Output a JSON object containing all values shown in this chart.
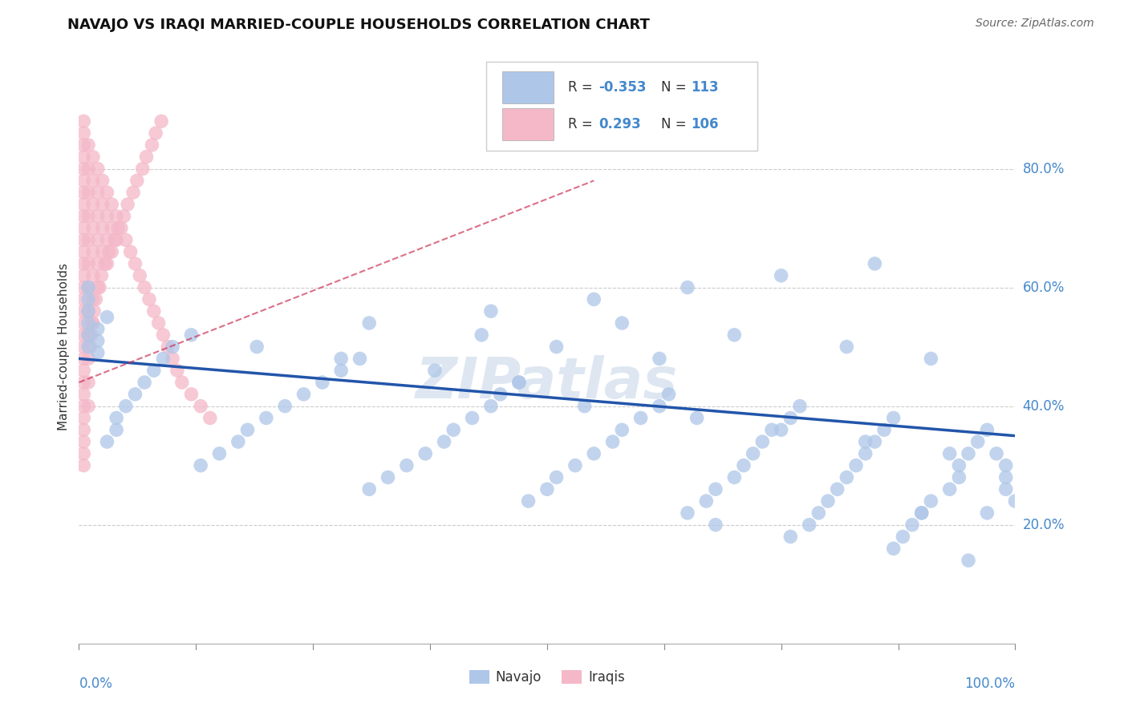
{
  "title": "NAVAJO VS IRAQI MARRIED-COUPLE HOUSEHOLDS CORRELATION CHART",
  "source": "Source: ZipAtlas.com",
  "ylabel": "Married-couple Households",
  "legend_navajo": {
    "R": -0.353,
    "N": 113,
    "color": "#aec6e8"
  },
  "legend_iraqi": {
    "R": 0.293,
    "N": 106,
    "color": "#f4b8c8"
  },
  "navajo_line_color": "#2255aa",
  "iraqi_line_color": "#cc3355",
  "background_color": "#ffffff",
  "grid_color": "#cccccc",
  "axis_label_color": "#4488cc",
  "title_color": "#111111",
  "ylabel_color": "#333333",
  "source_color": "#666666",
  "watermark_color": "#c8d8e8",
  "navajo_x": [
    0.97,
    0.96,
    0.95,
    0.94,
    0.94,
    0.93,
    0.91,
    0.9,
    0.89,
    0.88,
    0.87,
    0.86,
    0.85,
    0.84,
    0.83,
    0.82,
    0.81,
    0.8,
    0.79,
    0.78,
    0.77,
    0.76,
    0.75,
    0.73,
    0.72,
    0.71,
    0.7,
    0.68,
    0.67,
    0.65,
    0.63,
    0.62,
    0.6,
    0.58,
    0.57,
    0.55,
    0.53,
    0.51,
    0.5,
    0.48,
    0.47,
    0.45,
    0.44,
    0.42,
    0.4,
    0.39,
    0.37,
    0.35,
    0.33,
    0.31,
    0.3,
    0.28,
    0.26,
    0.24,
    0.22,
    0.2,
    0.18,
    0.17,
    0.15,
    0.13,
    0.12,
    0.1,
    0.09,
    0.08,
    0.07,
    0.06,
    0.05,
    0.04,
    0.04,
    0.03,
    0.03,
    0.02,
    0.02,
    0.02,
    0.01,
    0.01,
    0.01,
    0.01,
    0.01,
    0.01,
    0.98,
    0.99,
    0.99,
    0.99,
    1.0,
    0.62,
    0.51,
    0.43,
    0.31,
    0.44,
    0.55,
    0.65,
    0.75,
    0.85,
    0.9,
    0.47,
    0.38,
    0.28,
    0.19,
    0.54,
    0.66,
    0.74,
    0.84,
    0.93,
    0.58,
    0.7,
    0.82,
    0.91,
    0.97,
    0.68,
    0.76,
    0.87,
    0.95
  ],
  "navajo_y": [
    0.36,
    0.34,
    0.32,
    0.3,
    0.28,
    0.26,
    0.24,
    0.22,
    0.2,
    0.18,
    0.38,
    0.36,
    0.34,
    0.32,
    0.3,
    0.28,
    0.26,
    0.24,
    0.22,
    0.2,
    0.4,
    0.38,
    0.36,
    0.34,
    0.32,
    0.3,
    0.28,
    0.26,
    0.24,
    0.22,
    0.42,
    0.4,
    0.38,
    0.36,
    0.34,
    0.32,
    0.3,
    0.28,
    0.26,
    0.24,
    0.44,
    0.42,
    0.4,
    0.38,
    0.36,
    0.34,
    0.32,
    0.3,
    0.28,
    0.26,
    0.48,
    0.46,
    0.44,
    0.42,
    0.4,
    0.38,
    0.36,
    0.34,
    0.32,
    0.3,
    0.52,
    0.5,
    0.48,
    0.46,
    0.44,
    0.42,
    0.4,
    0.38,
    0.36,
    0.34,
    0.55,
    0.53,
    0.51,
    0.49,
    0.6,
    0.58,
    0.56,
    0.54,
    0.52,
    0.5,
    0.32,
    0.3,
    0.28,
    0.26,
    0.24,
    0.48,
    0.5,
    0.52,
    0.54,
    0.56,
    0.58,
    0.6,
    0.62,
    0.64,
    0.22,
    0.44,
    0.46,
    0.48,
    0.5,
    0.4,
    0.38,
    0.36,
    0.34,
    0.32,
    0.54,
    0.52,
    0.5,
    0.48,
    0.22,
    0.2,
    0.18,
    0.16,
    0.14
  ],
  "iraqi_x": [
    0.005,
    0.005,
    0.005,
    0.005,
    0.005,
    0.005,
    0.005,
    0.005,
    0.005,
    0.005,
    0.005,
    0.005,
    0.005,
    0.005,
    0.005,
    0.005,
    0.005,
    0.005,
    0.005,
    0.005,
    0.005,
    0.005,
    0.005,
    0.005,
    0.005,
    0.005,
    0.005,
    0.005,
    0.005,
    0.005,
    0.01,
    0.01,
    0.01,
    0.01,
    0.01,
    0.01,
    0.01,
    0.01,
    0.01,
    0.01,
    0.01,
    0.01,
    0.015,
    0.015,
    0.015,
    0.015,
    0.015,
    0.015,
    0.015,
    0.015,
    0.02,
    0.02,
    0.02,
    0.02,
    0.02,
    0.02,
    0.025,
    0.025,
    0.025,
    0.025,
    0.03,
    0.03,
    0.03,
    0.03,
    0.035,
    0.035,
    0.035,
    0.04,
    0.04,
    0.045,
    0.05,
    0.055,
    0.06,
    0.065,
    0.07,
    0.075,
    0.08,
    0.085,
    0.09,
    0.095,
    0.1,
    0.105,
    0.11,
    0.12,
    0.13,
    0.14,
    0.012,
    0.013,
    0.014,
    0.016,
    0.018,
    0.022,
    0.024,
    0.028,
    0.032,
    0.038,
    0.042,
    0.048,
    0.052,
    0.058,
    0.062,
    0.068,
    0.072,
    0.078,
    0.082,
    0.088
  ],
  "iraqi_y": [
    0.84,
    0.8,
    0.76,
    0.72,
    0.68,
    0.64,
    0.6,
    0.56,
    0.52,
    0.48,
    0.44,
    0.4,
    0.36,
    0.32,
    0.86,
    0.82,
    0.78,
    0.74,
    0.7,
    0.66,
    0.62,
    0.58,
    0.54,
    0.5,
    0.46,
    0.42,
    0.38,
    0.34,
    0.3,
    0.88,
    0.84,
    0.8,
    0.76,
    0.72,
    0.68,
    0.64,
    0.6,
    0.56,
    0.52,
    0.48,
    0.44,
    0.4,
    0.82,
    0.78,
    0.74,
    0.7,
    0.66,
    0.62,
    0.58,
    0.54,
    0.8,
    0.76,
    0.72,
    0.68,
    0.64,
    0.6,
    0.78,
    0.74,
    0.7,
    0.66,
    0.76,
    0.72,
    0.68,
    0.64,
    0.74,
    0.7,
    0.66,
    0.72,
    0.68,
    0.7,
    0.68,
    0.66,
    0.64,
    0.62,
    0.6,
    0.58,
    0.56,
    0.54,
    0.52,
    0.5,
    0.48,
    0.46,
    0.44,
    0.42,
    0.4,
    0.38,
    0.5,
    0.52,
    0.54,
    0.56,
    0.58,
    0.6,
    0.62,
    0.64,
    0.66,
    0.68,
    0.7,
    0.72,
    0.74,
    0.76,
    0.78,
    0.8,
    0.82,
    0.84,
    0.86,
    0.88
  ],
  "navajo_trend_x": [
    0.0,
    1.0
  ],
  "navajo_trend_y": [
    0.48,
    0.35
  ],
  "iraqi_trend_x": [
    0.0,
    0.55
  ],
  "iraqi_trend_y": [
    0.44,
    0.78
  ],
  "xlim": [
    0.0,
    1.0
  ],
  "ylim": [
    0.0,
    1.0
  ],
  "ytick_positions": [
    0.2,
    0.4,
    0.6,
    0.8
  ],
  "ytick_labels": [
    "20.0%",
    "40.0%",
    "60.0%",
    "80.0%"
  ]
}
